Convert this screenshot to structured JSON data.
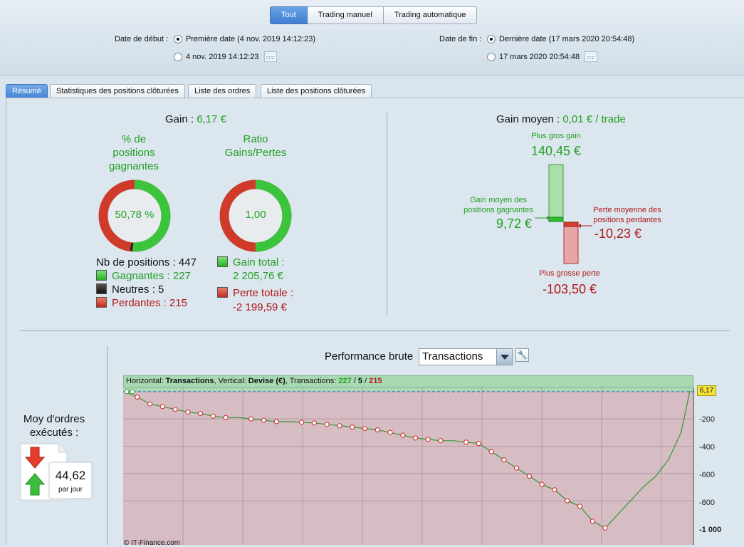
{
  "mode_tabs": [
    "Tout",
    "Trading manuel",
    "Trading automatique"
  ],
  "start": {
    "label": "Date de début :",
    "option1": "Première date (4 nov. 2019 14:12:23)",
    "option2": "4 nov. 2019 14:12:23"
  },
  "end": {
    "label": "Date de fin :",
    "option1": "Dernière date (17 mars 2020 20:54:48)",
    "option2": "17 mars 2020 20:54:48"
  },
  "tabs": [
    "Résumé",
    "Statistiques des positions clôturées",
    "Liste des ordres",
    "Liste des positions clôturées"
  ],
  "gain": {
    "label": "Gain :",
    "value": "6,17 €"
  },
  "pct_title": [
    "% de",
    "positions",
    "gagnantes"
  ],
  "pct_value": "50,78 %",
  "pct_win_fraction": 0.508,
  "ratio_title": [
    "Ratio",
    "Gains/Pertes"
  ],
  "ratio_value": "1,00",
  "ratio_fraction": 0.5,
  "positions": {
    "total": "Nb de positions : 447",
    "winners": "Gagnantes : 227",
    "neutral": "Neutres : 5",
    "losers": "Perdantes : 215"
  },
  "totals": {
    "gain_label": "Gain total :",
    "gain_value": "2 205,76 €",
    "loss_label": "Perte totale :",
    "loss_value": "-2 199,59 €"
  },
  "avg": {
    "label": "Gain moyen :",
    "value": "0,01 € / trade",
    "biggest_gain_label": "Plus gros gain",
    "biggest_gain": "140,45 €",
    "avg_win_label": [
      "Gain moyen des",
      "positions gagnantes"
    ],
    "avg_win": "9,72 €",
    "avg_loss_label": [
      "Perte moyenne des",
      "positions perdantes"
    ],
    "avg_loss": "-10,23 €",
    "biggest_loss_label": "Plus grosse perte",
    "biggest_loss": "-103,50 €"
  },
  "orders": {
    "title": [
      "Moy d'ordres",
      "exécutés :"
    ],
    "value": "44,62",
    "unit": "par jour"
  },
  "performance": {
    "title": "Performance brute",
    "selected": "Transactions",
    "header_prefix": "Horizontal: ",
    "header_h": "Transactions",
    "header_mid": ", Vertical: ",
    "header_v": "Devise (€)",
    "header_tx": ", Transactions: ",
    "tx_win": "227",
    "tx_sep1": " / ",
    "tx_neutral": "5",
    "tx_sep2": " / ",
    "tx_loss": "215",
    "current_value": "6,17",
    "y_ticks": [
      "-200",
      "-400",
      "-600",
      "-800",
      "-1 000"
    ],
    "copyright": "© IT-Finance.com"
  },
  "chart_data": {
    "type": "line",
    "xlabel": "Transactions",
    "ylabel": "Devise (€)",
    "ylim": [
      -1050,
      20
    ],
    "x": [
      0,
      10,
      20,
      30,
      40,
      50,
      60,
      70,
      80,
      90,
      100,
      110,
      120,
      130,
      140,
      150,
      160,
      170,
      180,
      190,
      200,
      210,
      220,
      230,
      240,
      250,
      260,
      270,
      280,
      290,
      300,
      310,
      320,
      330,
      340,
      350,
      360,
      370,
      380,
      390,
      400,
      410,
      420,
      430,
      440,
      447
    ],
    "series": [
      {
        "values": [
          0,
          -40,
          -90,
          -110,
          -130,
          -150,
          -160,
          -180,
          -190,
          -190,
          -200,
          -210,
          -220,
          -220,
          -225,
          -230,
          -240,
          -250,
          -260,
          -270,
          -280,
          -300,
          -320,
          -340,
          -350,
          -360,
          -360,
          -370,
          -380,
          -440,
          -500,
          -560,
          -620,
          -680,
          -720,
          -800,
          -840,
          -950,
          -1000,
          -900,
          -800,
          -700,
          -620,
          -500,
          -300,
          6
        ]
      }
    ],
    "colors": {
      "win_zone": "#a9d9b3",
      "loss_zone": "#d6bcc3",
      "line": "#2f9a2f",
      "marker": "#d02020"
    }
  }
}
